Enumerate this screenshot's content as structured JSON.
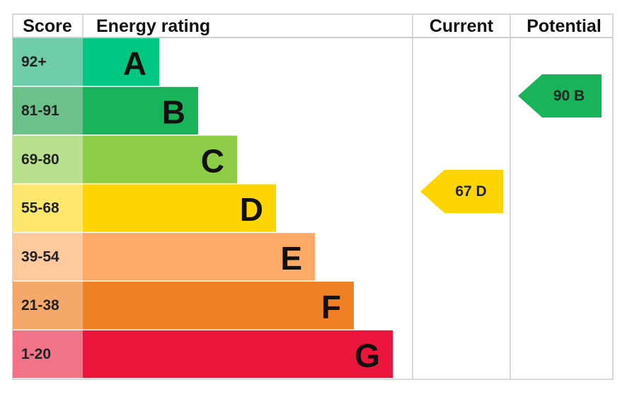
{
  "header": {
    "score": "Score",
    "energy_rating": "Energy rating",
    "current": "Current",
    "potential": "Potential"
  },
  "bands": [
    {
      "score": "92+",
      "letter": "A",
      "color": "#00c781",
      "score_color": "#6fcdaa"
    },
    {
      "score": "81-91",
      "letter": "B",
      "color": "#19b459",
      "score_color": "#6cc08a"
    },
    {
      "score": "69-80",
      "letter": "C",
      "color": "#8dce46",
      "score_color": "#b9e08e"
    },
    {
      "score": "55-68",
      "letter": "D",
      "color": "#ffd500",
      "score_color": "#ffe66c"
    },
    {
      "score": "39-54",
      "letter": "E",
      "color": "#fcaa65",
      "score_color": "#fdca9e"
    },
    {
      "score": "21-38",
      "letter": "F",
      "color": "#ef8023",
      "score_color": "#f4a86a"
    },
    {
      "score": "1-20",
      "letter": "G",
      "color": "#e9153b",
      "score_color": "#f07388"
    }
  ],
  "current": {
    "label": "67 D",
    "color": "#ffd500"
  },
  "potential": {
    "label": "90 B",
    "color": "#19b459"
  }
}
